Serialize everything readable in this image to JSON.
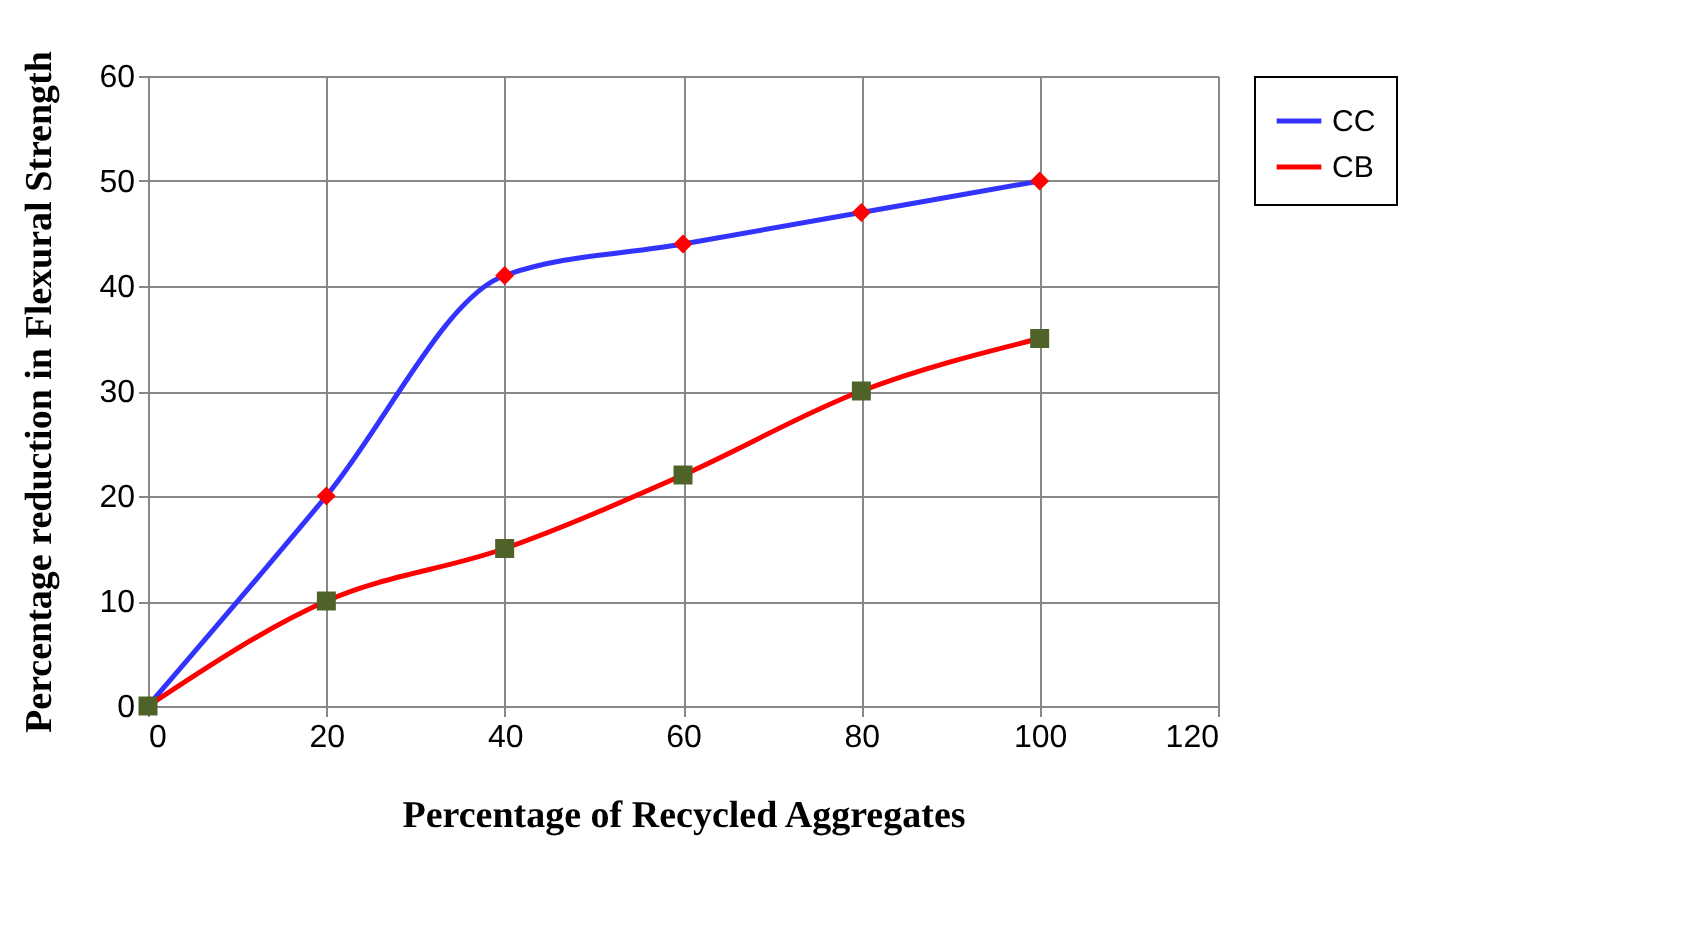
{
  "chart_data": {
    "type": "line",
    "xlabel": "Percentage of Recycled Aggregates",
    "ylabel": "Percentage reduction in Flexural Strength",
    "x": [
      0,
      20,
      40,
      60,
      80,
      100
    ],
    "series": [
      {
        "name": "CC",
        "color": "#3333ff",
        "marker": "diamond",
        "colors": [
          "#ff0000",
          "#ff0000",
          "#ff0000",
          "#ff0000",
          "#ff0000",
          "#ff0000"
        ],
        "values": [
          0,
          20,
          41,
          44,
          47,
          50
        ]
      },
      {
        "name": "CB",
        "color": "#ff0000",
        "marker": "square",
        "colors": [
          "#4f6228",
          "#4f6228",
          "#4f6228",
          "#4f6228",
          "#4f6228",
          "#4f6228"
        ],
        "values": [
          0,
          10,
          15,
          22,
          30,
          35
        ]
      }
    ],
    "xlim": [
      0,
      120
    ],
    "xticks": [
      0,
      20,
      40,
      60,
      80,
      100,
      120
    ],
    "ylim": [
      0,
      60
    ],
    "yticks": [
      0,
      10,
      20,
      30,
      40,
      50,
      60
    ],
    "grid": true,
    "legend": "right",
    "line_style": "solid"
  }
}
